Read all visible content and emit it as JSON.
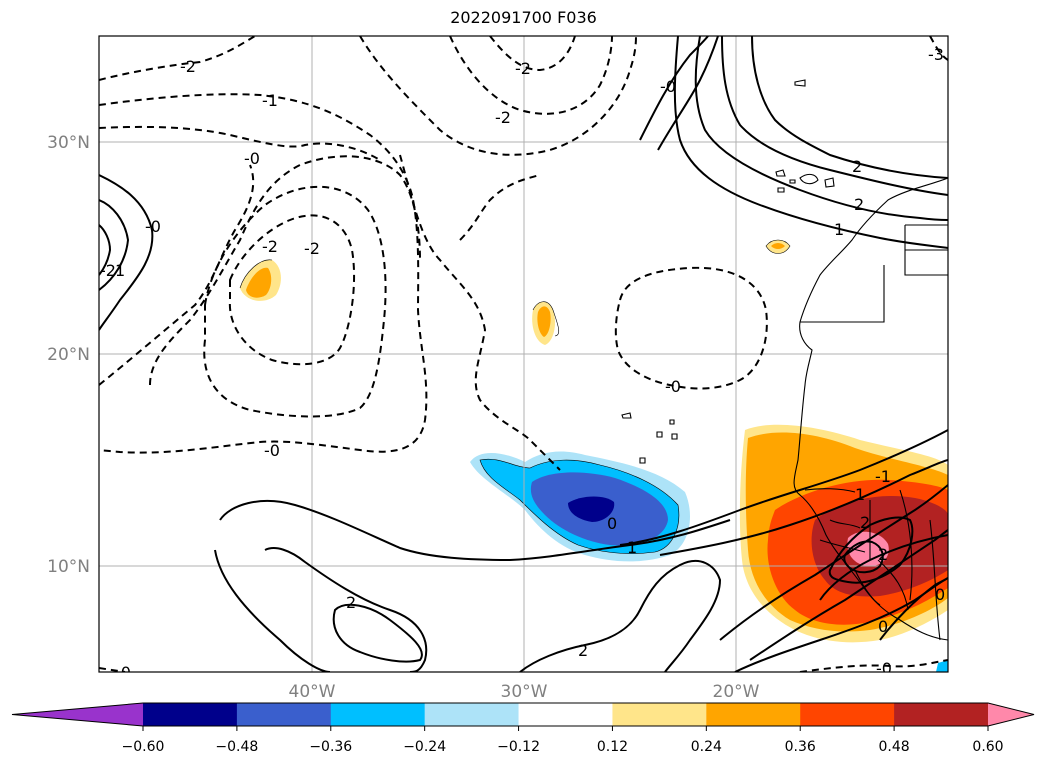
{
  "title": "2022091700 F036",
  "map": {
    "lat_labels": [
      "30°N",
      "20°N",
      "10°N"
    ],
    "lon_labels": [
      "40°W",
      "30°W",
      "20°W"
    ],
    "contour_labels": {
      "c1": "-2",
      "c2": "-2",
      "c3": "-1",
      "c4": "-2",
      "c5": "-0",
      "c6": "-0",
      "c7": "-2",
      "c8": "-2",
      "c9": "-0",
      "c10": "-0",
      "c11": "2",
      "c12": "1",
      "c13": "0",
      "c14": "1",
      "c15": "-0",
      "c16": "2",
      "c17": "-2",
      "c18": "-0",
      "c19": "-1",
      "c20": "0",
      "c21": "2",
      "c22": "1",
      "c23": "-3",
      "c24": "2",
      "c25": "2",
      "c26": "0",
      "c27": "-0",
      "c28": "1",
      "c29": "2"
    }
  },
  "colorbar": {
    "colors": [
      "#9933cc",
      "#00008b",
      "#3a5fcd",
      "#00bfff",
      "#ade3f8",
      "#ffffff",
      "#ffe58a",
      "#ffa500",
      "#ff4500",
      "#b22222",
      "#ff88aa"
    ],
    "ticks": [
      "−0.60",
      "−0.48",
      "−0.36",
      "−0.24",
      "−0.12",
      "0.12",
      "0.24",
      "0.36",
      "0.48",
      "0.60"
    ]
  }
}
